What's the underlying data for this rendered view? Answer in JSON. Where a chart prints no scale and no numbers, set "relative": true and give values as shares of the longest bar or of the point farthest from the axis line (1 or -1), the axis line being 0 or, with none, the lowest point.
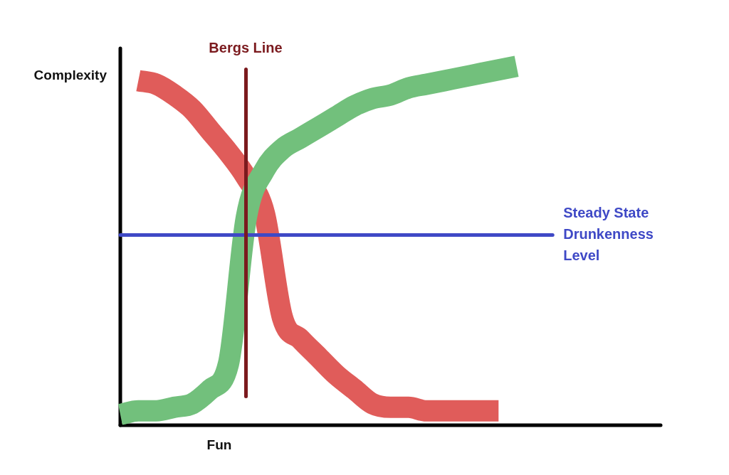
{
  "chart_data": {
    "type": "line",
    "xlabel": "Fun",
    "ylabel": "Complexity",
    "relative": true,
    "categories": [
      null,
      null,
      null,
      null,
      null,
      null,
      null,
      null,
      null,
      null,
      null,
      null,
      null,
      null,
      null,
      null,
      null,
      null,
      null,
      null,
      null,
      null,
      null,
      null,
      null,
      null,
      null,
      null,
      null,
      null,
      null
    ],
    "series": [
      {
        "color": "#e05c5a",
        "values": [
          null,
          0.96,
          0.95,
          0.92,
          0.88,
          0.82,
          0.76,
          0.69,
          0.59,
          0.3,
          0.24,
          0.19,
          0.14,
          0.1,
          0.06,
          0.05,
          0.05,
          0.04,
          0.04,
          0.04,
          0.04,
          0.04,
          null,
          null,
          null,
          null,
          null,
          null,
          null,
          null,
          null
        ]
      },
      {
        "color": "#72c07c",
        "values": [
          0.03,
          0.04,
          0.04,
          0.05,
          0.06,
          0.1,
          0.17,
          0.58,
          0.71,
          0.77,
          0.8,
          0.83,
          0.86,
          0.89,
          0.91,
          0.92,
          0.94,
          0.95,
          0.96,
          0.97,
          0.98,
          0.99,
          1.0,
          null,
          null,
          null,
          null,
          null,
          null,
          null,
          null
        ]
      }
    ],
    "ref_lines": [
      {
        "axis": "y",
        "value": 0.53,
        "label": "Steady State Drunkenness Level",
        "color": "#3f49c6"
      }
    ],
    "annotations": [
      "Bergs Line"
    ]
  }
}
